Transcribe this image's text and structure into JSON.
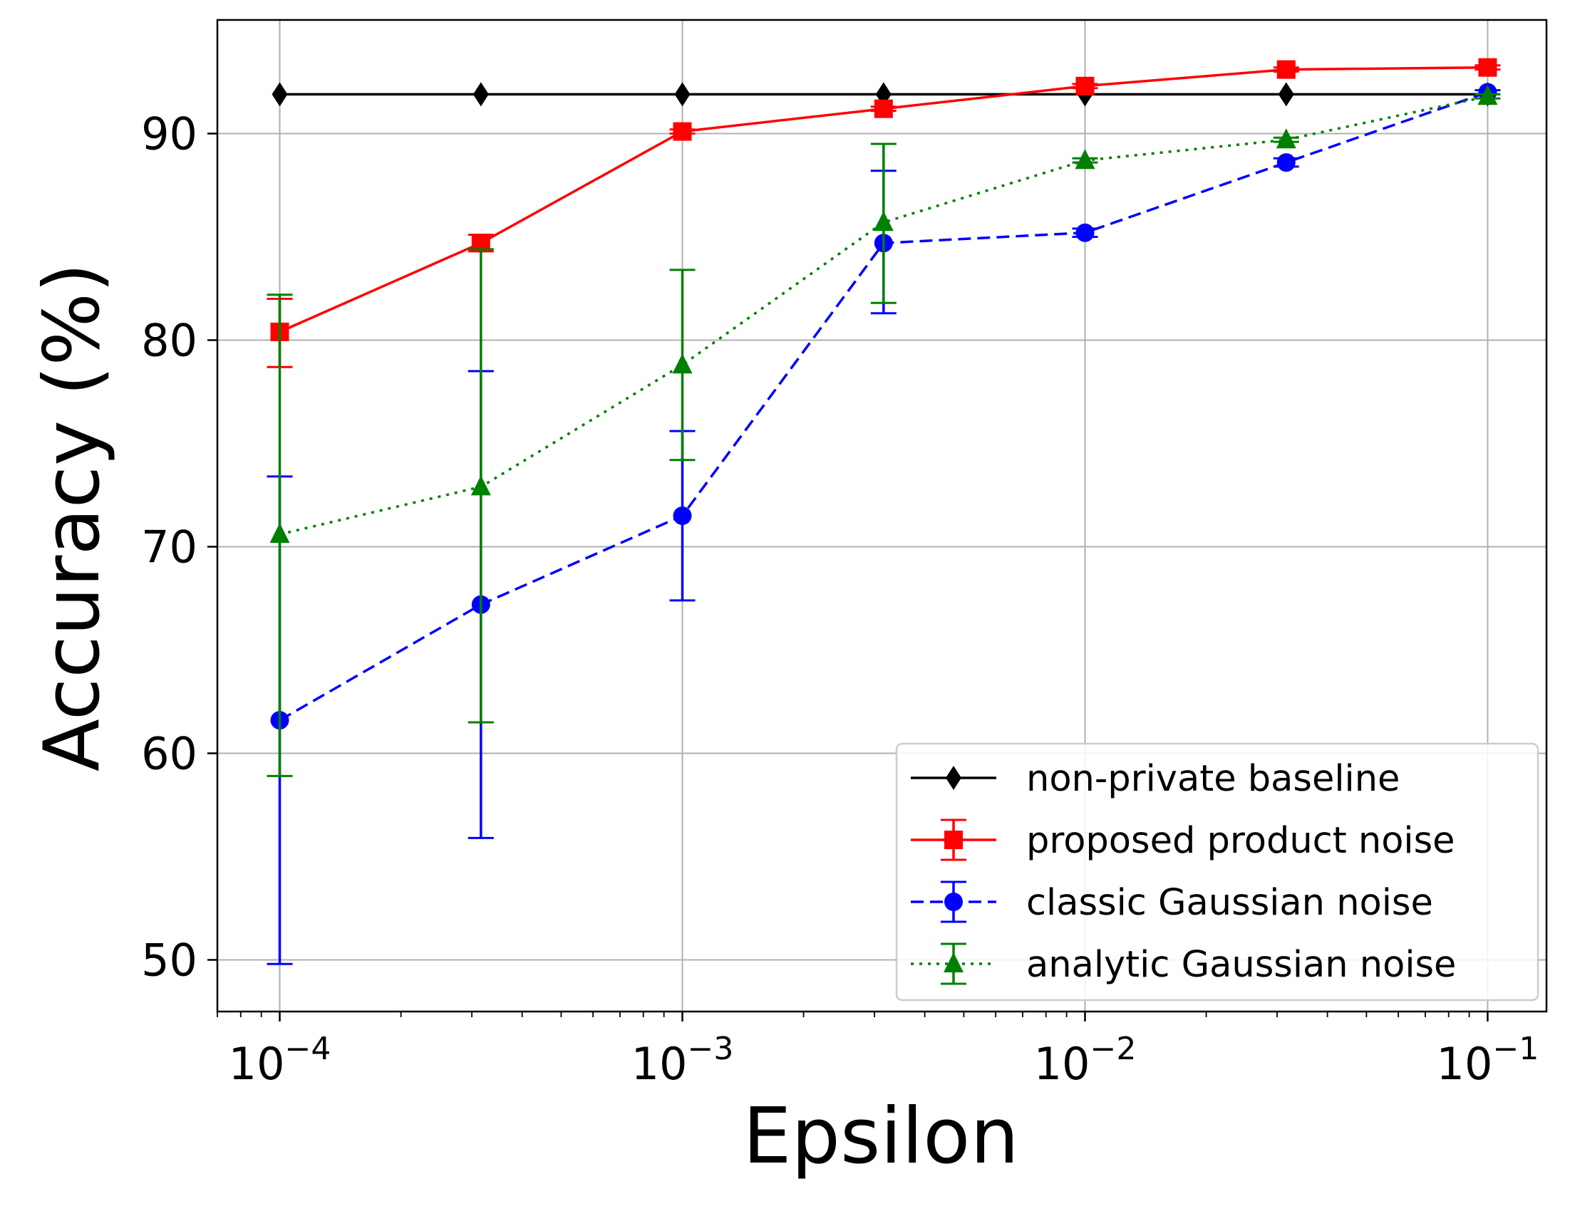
{
  "chart_data": {
    "type": "line",
    "xscale": "log",
    "xlim": [
      7e-05,
      0.14
    ],
    "ylim": [
      47.5,
      95.5
    ],
    "xlabel": "Epsilon",
    "ylabel": "Accuracy (%)",
    "xticks": [
      {
        "value": 0.0001,
        "base": "10",
        "exp": "−4"
      },
      {
        "value": 0.001,
        "base": "10",
        "exp": "−3"
      },
      {
        "value": 0.01,
        "base": "10",
        "exp": "−2"
      },
      {
        "value": 0.1,
        "base": "10",
        "exp": "−1"
      }
    ],
    "yticks": [
      "50",
      "60",
      "70",
      "80",
      "90"
    ],
    "grid": true,
    "legend_position": "lower-right",
    "x": [
      0.0001,
      0.000316,
      0.001,
      0.00316,
      0.01,
      0.0316,
      0.1
    ],
    "series": [
      {
        "name": "non-private baseline",
        "color": "#000000",
        "marker": "diamond",
        "dash": "solid",
        "values": [
          91.9,
          91.9,
          91.9,
          91.9,
          91.9,
          91.9,
          91.9
        ],
        "err_low": null,
        "err_high": null
      },
      {
        "name": "proposed product noise",
        "color": "#ff0000",
        "marker": "square",
        "dash": "solid",
        "values": [
          80.4,
          84.7,
          90.1,
          91.2,
          92.3,
          93.1,
          93.2
        ],
        "err_low": [
          78.7,
          84.3,
          90.0,
          91.1,
          92.2,
          93.0,
          93.1
        ],
        "err_high": [
          82.0,
          85.1,
          90.2,
          91.3,
          92.4,
          93.2,
          93.3
        ]
      },
      {
        "name": "classic Gaussian noise",
        "color": "#0000ff",
        "marker": "circle",
        "dash": "dashed",
        "values": [
          61.6,
          67.2,
          71.5,
          84.7,
          85.2,
          88.6,
          92.0
        ],
        "err_low": [
          49.8,
          55.9,
          67.4,
          81.3,
          85.0,
          88.4,
          91.9
        ],
        "err_high": [
          73.4,
          78.5,
          75.6,
          88.2,
          85.4,
          88.8,
          92.1
        ]
      },
      {
        "name": "analytic Gaussian noise",
        "color": "#008000",
        "marker": "triangle",
        "dash": "dotted",
        "values": [
          70.6,
          72.9,
          78.8,
          85.7,
          88.7,
          89.7,
          91.8
        ],
        "err_low": [
          58.9,
          61.5,
          74.2,
          81.8,
          88.6,
          89.6,
          91.7
        ],
        "err_high": [
          82.2,
          84.4,
          83.4,
          89.5,
          88.8,
          89.8,
          91.9
        ]
      }
    ]
  }
}
